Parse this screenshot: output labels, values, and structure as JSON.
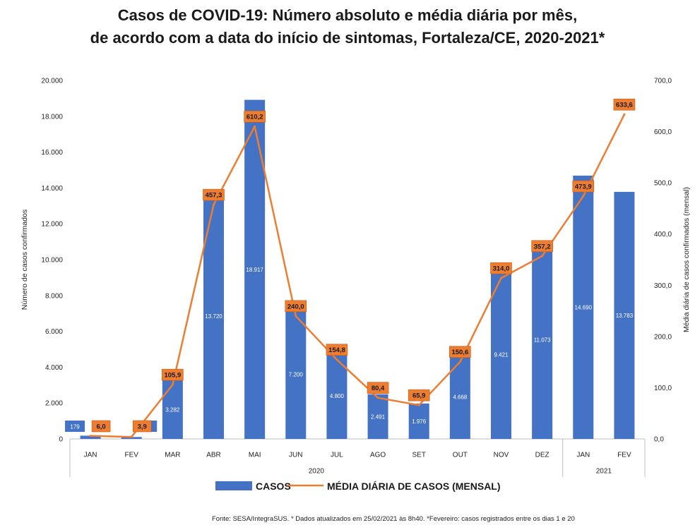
{
  "chart_data": {
    "type": "bar",
    "title": "Casos de COVID-19: Número absoluto e média diária por mês,",
    "subtitle": "de acordo com a data do início de sintomas, Fortaleza/CE, 2020-2021*",
    "categories": [
      "JAN",
      "FEV",
      "MAR",
      "ABR",
      "MAI",
      "JUN",
      "JUL",
      "AGO",
      "SET",
      "OUT",
      "NOV",
      "DEZ",
      "JAN",
      "FEV"
    ],
    "year_groups": [
      {
        "label": "2020",
        "count": 12
      },
      {
        "label": "2021",
        "count": 2
      }
    ],
    "series": [
      {
        "name": "CASOS",
        "type": "bar",
        "axis": "left",
        "color": "#4472C4",
        "values": [
          179,
          106,
          3282,
          13720,
          18917,
          7200,
          4800,
          2491,
          1976,
          4668,
          9421,
          11073,
          14690,
          13783
        ],
        "labels": [
          "179",
          "106",
          "3.282",
          "13.720",
          "18.917",
          "7.200",
          "4.800",
          "2.491",
          "1.976",
          "4.668",
          "9.421",
          "11.073",
          "14.690",
          "13.783"
        ]
      },
      {
        "name": "MÉDIA DIÁRIA DE CASOS (MENSAL)",
        "type": "line",
        "axis": "right",
        "color": "#ED7D31",
        "values": [
          6.0,
          3.9,
          105.9,
          457.3,
          610.2,
          240.0,
          154.8,
          80.4,
          65.9,
          150.6,
          314.0,
          357.2,
          473.9,
          633.6
        ],
        "labels": [
          "6,0",
          "3,9",
          "105,9",
          "457,3",
          "610,2",
          "240,0",
          "154,8",
          "80,4",
          "65,9",
          "150,6",
          "314,0",
          "357,2",
          "473,9",
          "633,6"
        ]
      }
    ],
    "ylabel": "Número de casos confirmados",
    "ylabel_right": "Média diária de casos confirmados (mensal)",
    "ylim": [
      0,
      20000
    ],
    "ylim_right": [
      0,
      700
    ],
    "yticks": [
      "0",
      "2.000",
      "4.000",
      "6.000",
      "8.000",
      "10.000",
      "12.000",
      "14.000",
      "16.000",
      "18.000",
      "20.000"
    ],
    "yticks_right": [
      "0,0",
      "100,0",
      "200,0",
      "300,0",
      "400,0",
      "500,0",
      "600,0",
      "700,0"
    ],
    "grid": false,
    "legend_position": "bottom"
  },
  "source_text": "Fonte: SESA/IntegraSUS. * Dados atualizados em 25/02/2021 às 8h40. *Fevereiro: casos registrados entre os dias 1 e 20"
}
